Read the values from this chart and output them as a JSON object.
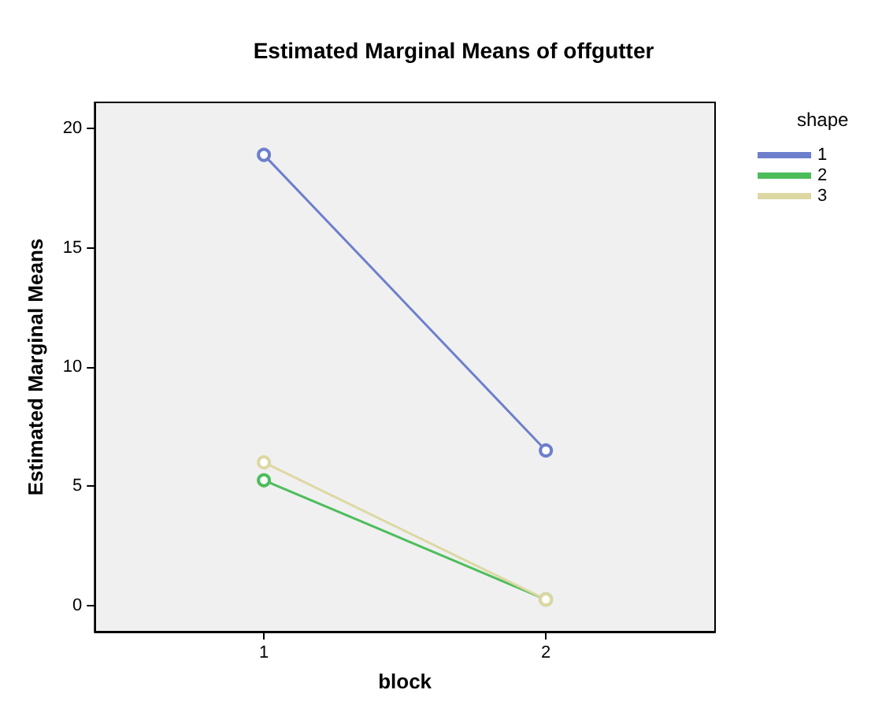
{
  "chart_data": {
    "type": "line",
    "title": "Estimated Marginal Means of offgutter",
    "xlabel": "block",
    "ylabel": "Estimated Marginal Means",
    "legend_title": "shape",
    "x": [
      1,
      2
    ],
    "xlim": [
      0.4,
      2.6
    ],
    "xticks": [
      1,
      2
    ],
    "ylim": [
      -1.1,
      21.1
    ],
    "yticks": [
      0,
      5,
      10,
      15,
      20
    ],
    "series": [
      {
        "name": "1",
        "color": "#6d7fcc",
        "values": [
          18.9,
          6.5
        ]
      },
      {
        "name": "2",
        "color": "#4dbd5b",
        "values": [
          5.25,
          0.25
        ]
      },
      {
        "name": "3",
        "color": "#ddd8a3",
        "values": [
          6.0,
          0.25
        ]
      }
    ],
    "grid": false,
    "legend": "top right",
    "marker": "circle",
    "line_style": "solid"
  }
}
